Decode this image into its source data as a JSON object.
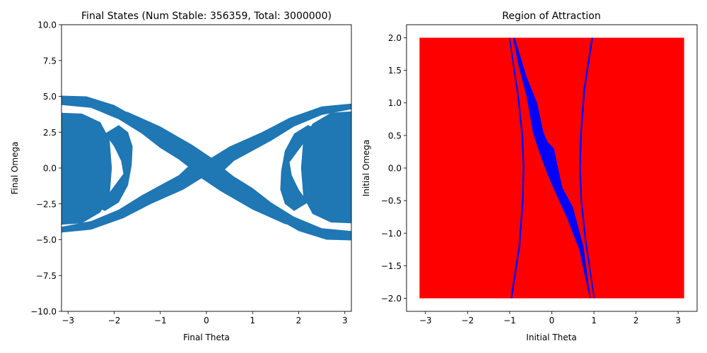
{
  "chart_data": [
    {
      "type": "scatter",
      "title": "Final States (Num Stable: 356359, Total: 3000000)",
      "xlabel": "Final Theta",
      "ylabel": "Final Omega",
      "xlim": [
        -3.1416,
        3.1416
      ],
      "ylim": [
        -10,
        10
      ],
      "xticks": [
        -3,
        -2,
        -1,
        0,
        1,
        2,
        3
      ],
      "xtick_labels": [
        "−3",
        "−2",
        "−1",
        "0",
        "1",
        "2",
        "3"
      ],
      "yticks": [
        -10,
        -7.5,
        -5,
        -2.5,
        0,
        2.5,
        5,
        7.5,
        10
      ],
      "ytick_labels": [
        "−10.0",
        "−7.5",
        "−5.0",
        "−2.5",
        "0.0",
        "2.5",
        "5.0",
        "7.5",
        "10.0"
      ],
      "grid": false,
      "series_color": "#1f77b4",
      "outer_band": [
        [
          -3.14,
          5.05
        ],
        [
          -2.6,
          5.0
        ],
        [
          -2.0,
          4.4
        ],
        [
          -1.4,
          3.3
        ],
        [
          -0.8,
          1.9
        ],
        [
          -0.3,
          0.9
        ],
        [
          0.0,
          0.5
        ],
        [
          0.3,
          0.0
        ],
        [
          0.8,
          -1.9
        ],
        [
          1.4,
          -3.3
        ],
        [
          2.0,
          -4.4
        ],
        [
          2.6,
          -5.0
        ],
        [
          3.14,
          -5.05
        ],
        [
          3.14,
          -4.5
        ],
        [
          2.6,
          -4.4
        ],
        [
          2.0,
          -3.7
        ],
        [
          1.4,
          -2.6
        ],
        [
          0.8,
          -1.3
        ],
        [
          0.3,
          -0.2
        ],
        [
          0.0,
          0.0
        ],
        [
          -0.3,
          0.3
        ],
        [
          -0.8,
          1.3
        ],
        [
          -1.4,
          2.6
        ],
        [
          -2.0,
          3.7
        ],
        [
          -2.6,
          4.4
        ],
        [
          -3.14,
          4.5
        ]
      ],
      "mid_band": [
        [
          -3.14,
          4.4
        ],
        [
          -2.5,
          4.2
        ],
        [
          -1.9,
          3.4
        ],
        [
          -1.4,
          2.4
        ],
        [
          -1.0,
          1.4
        ],
        [
          -0.6,
          0.6
        ],
        [
          -0.4,
          0.1
        ],
        [
          -0.6,
          -0.5
        ],
        [
          -1.0,
          -1.2
        ],
        [
          -1.4,
          -1.9
        ],
        [
          -1.9,
          -2.9
        ],
        [
          -2.5,
          -3.7
        ],
        [
          -3.14,
          -4.1
        ],
        [
          -3.14,
          -4.5
        ],
        [
          -2.5,
          -4.3
        ],
        [
          -1.8,
          -3.5
        ],
        [
          -1.2,
          -2.5
        ],
        [
          -0.5,
          -1.5
        ],
        [
          0.0,
          -0.5
        ],
        [
          0.3,
          0.3
        ],
        [
          -0.3,
          1.6
        ],
        [
          -1.0,
          2.9
        ],
        [
          -1.7,
          3.9
        ],
        [
          -2.4,
          4.4
        ],
        [
          -3.14,
          4.6
        ]
      ],
      "core": [
        [
          -3.14,
          3.85
        ],
        [
          -2.7,
          3.8
        ],
        [
          -2.3,
          3.2
        ],
        [
          -2.1,
          2.0
        ],
        [
          -2.05,
          0.0
        ],
        [
          -2.1,
          -2.0
        ],
        [
          -2.3,
          -3.1
        ],
        [
          -2.7,
          -3.85
        ],
        [
          -3.14,
          -3.95
        ]
      ],
      "crescent": [
        [
          -1.9,
          3.0
        ],
        [
          -1.7,
          2.5
        ],
        [
          -1.6,
          1.5
        ],
        [
          -1.62,
          0.2
        ],
        [
          -1.7,
          -1.2
        ],
        [
          -1.9,
          -2.4
        ],
        [
          -2.2,
          -3.0
        ],
        [
          -2.4,
          -2.7
        ],
        [
          -2.1,
          -1.7
        ],
        [
          -1.8,
          -0.4
        ],
        [
          -1.85,
          0.5
        ],
        [
          -2.0,
          1.5
        ],
        [
          -2.2,
          2.4
        ]
      ]
    },
    {
      "type": "scatter",
      "title": "Region of Attraction",
      "xlabel": "Initial Theta",
      "ylabel": "Initial Omega",
      "xlim": [
        -3.45,
        3.45
      ],
      "ylim": [
        -2.2,
        2.2
      ],
      "xticks": [
        -3,
        -2,
        -1,
        0,
        1,
        2,
        3
      ],
      "xtick_labels": [
        "−3",
        "−2",
        "−1",
        "0",
        "1",
        "2",
        "3"
      ],
      "yticks": [
        -2,
        -1.5,
        -1,
        -0.5,
        0,
        0.5,
        1,
        1.5,
        2
      ],
      "ytick_labels": [
        "−2.0",
        "−1.5",
        "−1.0",
        "−0.5",
        "0.0",
        "0.5",
        "1.0",
        "1.5",
        "2.0"
      ],
      "grid": false,
      "unstable_color": "#ff0000",
      "stable_color": "#0000ff",
      "domain_box": [
        [
          -3.1416,
          -2.0
        ],
        [
          3.1416,
          2.0
        ]
      ],
      "central_blade": [
        [
          -0.92,
          2.0
        ],
        [
          -0.88,
          2.0
        ],
        [
          -0.6,
          1.4
        ],
        [
          -0.35,
          1.0
        ],
        [
          -0.2,
          0.55
        ],
        [
          -0.1,
          0.4
        ],
        [
          0.05,
          0.3
        ],
        [
          0.15,
          0.0
        ],
        [
          0.25,
          -0.3
        ],
        [
          0.5,
          -0.6
        ],
        [
          0.75,
          -1.2
        ],
        [
          0.92,
          -2.0
        ],
        [
          0.9,
          -2.0
        ],
        [
          0.65,
          -1.25
        ],
        [
          0.35,
          -0.75
        ],
        [
          0.1,
          -0.4
        ],
        [
          -0.1,
          -0.1
        ],
        [
          -0.3,
          0.25
        ],
        [
          -0.45,
          0.55
        ],
        [
          -0.6,
          1.1
        ],
        [
          -0.8,
          1.6
        ]
      ],
      "left_arc": [
        [
          -0.98,
          -2.0
        ],
        [
          -0.94,
          -2.0
        ],
        [
          -0.75,
          -1.2
        ],
        [
          -0.67,
          -0.5
        ],
        [
          -0.65,
          0.0
        ],
        [
          -0.68,
          0.5
        ],
        [
          -0.78,
          1.1
        ],
        [
          -0.99,
          2.0
        ],
        [
          -1.02,
          2.0
        ],
        [
          -0.82,
          1.1
        ],
        [
          -0.72,
          0.5
        ],
        [
          -0.69,
          0.0
        ],
        [
          -0.71,
          -0.5
        ],
        [
          -0.79,
          -1.2
        ]
      ],
      "right_arc": [
        [
          0.98,
          2.0
        ],
        [
          0.94,
          2.0
        ],
        [
          0.75,
          1.2
        ],
        [
          0.67,
          0.5
        ],
        [
          0.65,
          0.0
        ],
        [
          0.68,
          -0.5
        ],
        [
          0.78,
          -1.1
        ],
        [
          0.99,
          -2.0
        ],
        [
          1.02,
          -2.0
        ],
        [
          0.82,
          -1.1
        ],
        [
          0.72,
          -0.5
        ],
        [
          0.69,
          0.0
        ],
        [
          0.71,
          0.5
        ],
        [
          0.79,
          1.2
        ]
      ]
    }
  ]
}
